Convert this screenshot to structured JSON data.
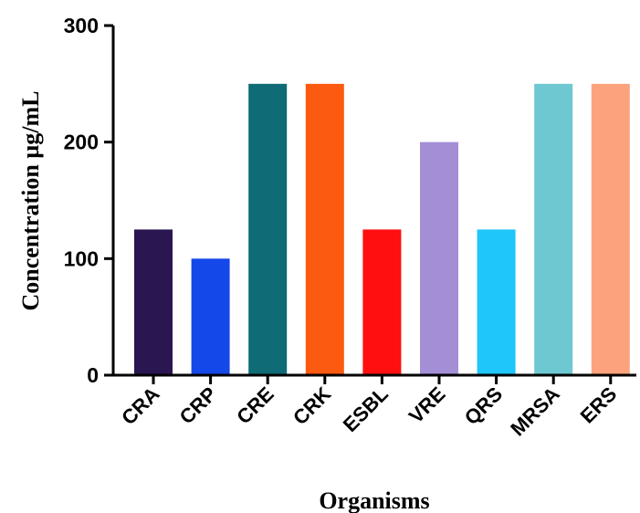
{
  "chart_data": {
    "type": "bar",
    "categories": [
      "CRA",
      "CRP",
      "CRE",
      "CRK",
      "ESBL",
      "VRE",
      "QRS",
      "MRSA",
      "ERS"
    ],
    "values": [
      125,
      100,
      250,
      250,
      125,
      200,
      125,
      250,
      250
    ],
    "colors": [
      "#2a1650",
      "#1448e8",
      "#0f6b75",
      "#fc5a10",
      "#ff0f0f",
      "#a48ed6",
      "#1ec6fa",
      "#6ec8d2",
      "#fca37e"
    ],
    "xlabel": "Organisms",
    "ylabel": "Concentration µg/mL",
    "ylim": [
      0,
      300
    ],
    "yticks": [
      0,
      100,
      200,
      300
    ],
    "grid": false,
    "legend": false
  }
}
